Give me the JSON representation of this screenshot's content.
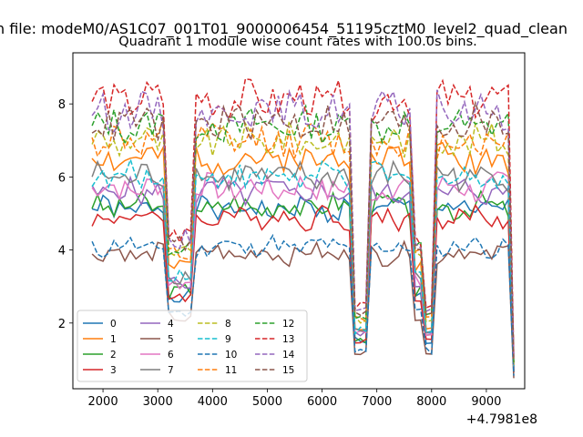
{
  "suptitle": "n file: modeM0/AS1C07_001T01_9000006454_51195cztM0_level2_quad_clean",
  "chart_data": {
    "type": "line",
    "title": "Quadrant 1 module wise count rates with 100.0s bins.",
    "xlabel": "",
    "ylabel": "",
    "x_offset_label": "+4.7981e8",
    "xlim": [
      1450,
      9700
    ],
    "ylim": [
      0.2,
      9.4
    ],
    "xticks": [
      2000,
      3000,
      4000,
      5000,
      6000,
      7000,
      8000,
      9000
    ],
    "yticks": [
      2,
      4,
      6,
      8
    ],
    "x_start": 1800,
    "x_step": 100,
    "legend": {
      "location": "lower-left",
      "columns": 4
    },
    "series": [
      {
        "name": "0",
        "color": "#1f77b4",
        "dash": "solid",
        "offset": 0.0,
        "level": 5.1,
        "seed": 1
      },
      {
        "name": "1",
        "color": "#ff7f0e",
        "dash": "solid",
        "offset": 0.05,
        "level": 6.5,
        "seed": 2
      },
      {
        "name": "2",
        "color": "#2ca02c",
        "dash": "solid",
        "offset": 0.1,
        "level": 5.2,
        "seed": 3
      },
      {
        "name": "3",
        "color": "#d62728",
        "dash": "solid",
        "offset": 0.15,
        "level": 4.9,
        "seed": 4
      },
      {
        "name": "4",
        "color": "#9467bd",
        "dash": "solid",
        "offset": 0.2,
        "level": 5.6,
        "seed": 5
      },
      {
        "name": "5",
        "color": "#8c564b",
        "dash": "solid",
        "offset": 0.25,
        "level": 3.9,
        "seed": 6
      },
      {
        "name": "6",
        "color": "#e377c2",
        "dash": "solid",
        "offset": 0.3,
        "level": 5.7,
        "seed": 7
      },
      {
        "name": "7",
        "color": "#7f7f7f",
        "dash": "solid",
        "offset": 0.35,
        "level": 6.0,
        "seed": 8
      },
      {
        "name": "8",
        "color": "#bcbd22",
        "dash": "dashed",
        "offset": 0.4,
        "level": 7.0,
        "seed": 9
      },
      {
        "name": "9",
        "color": "#17becf",
        "dash": "dashed",
        "offset": 0.45,
        "level": 6.0,
        "seed": 10
      },
      {
        "name": "10",
        "color": "#1f77b4",
        "dash": "dashed",
        "offset": 0.5,
        "level": 4.1,
        "seed": 11
      },
      {
        "name": "11",
        "color": "#ff7f0e",
        "dash": "dashed",
        "offset": 0.55,
        "level": 7.0,
        "seed": 12
      },
      {
        "name": "12",
        "color": "#2ca02c",
        "dash": "dashed",
        "offset": 0.6,
        "level": 7.4,
        "seed": 13
      },
      {
        "name": "13",
        "color": "#d62728",
        "dash": "dashed",
        "offset": 0.65,
        "level": 8.1,
        "seed": 14
      },
      {
        "name": "14",
        "color": "#9467bd",
        "dash": "dashed",
        "offset": 0.7,
        "level": 7.8,
        "seed": 15
      },
      {
        "name": "15",
        "color": "#8c564b",
        "dash": "dashed",
        "offset": 0.75,
        "level": 7.5,
        "seed": 16
      }
    ],
    "events": [
      {
        "start": 3200,
        "end": 3600,
        "factor": 0.55
      },
      {
        "start": 6600,
        "end": 6800,
        "factor": 0.3
      },
      {
        "start": 7700,
        "end": 7800,
        "factor": 0.55
      },
      {
        "start": 7900,
        "end": 8000,
        "factor": 0.3
      },
      {
        "start": 9450,
        "end": 9500,
        "factor": 0.13
      }
    ]
  }
}
